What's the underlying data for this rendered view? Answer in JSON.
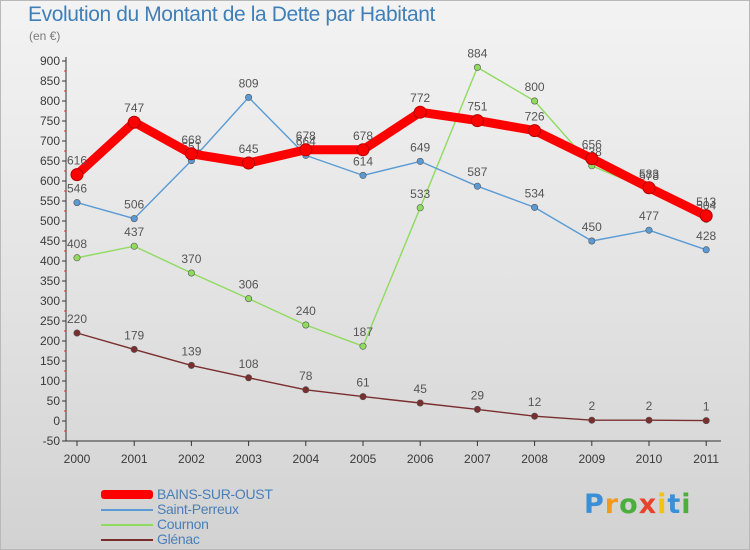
{
  "chart_data": {
    "type": "line",
    "title": "Evolution du Montant de la Dette par Habitant",
    "subtitle": "(en €)",
    "x": [
      "2000",
      "2001",
      "2002",
      "2003",
      "2004",
      "2005",
      "2006",
      "2007",
      "2008",
      "2009",
      "2010",
      "2011"
    ],
    "ylim": [
      -50,
      900
    ],
    "yticks": [
      -50,
      0,
      50,
      100,
      150,
      200,
      250,
      300,
      350,
      400,
      450,
      500,
      550,
      600,
      650,
      700,
      750,
      800,
      850,
      900
    ],
    "grid": false,
    "legend_position": "bottom-left",
    "series": [
      {
        "name": "BAINS-SUR-OUST",
        "color": "#ff0000",
        "emphasis": true,
        "values": [
          616,
          747,
          668,
          645,
          678,
          678,
          772,
          751,
          726,
          656,
          583,
          513
        ]
      },
      {
        "name": "Saint-Perreux",
        "color": "#5a9bd5",
        "values": [
          546,
          506,
          651,
          809,
          664,
          614,
          649,
          587,
          534,
          450,
          477,
          428
        ]
      },
      {
        "name": "Cournon",
        "color": "#8fdb5e",
        "values": [
          408,
          437,
          370,
          306,
          240,
          187,
          533,
          884,
          800,
          638,
          578,
          504
        ]
      },
      {
        "name": "Glénac",
        "color": "#7a2e2e",
        "values": [
          220,
          179,
          139,
          108,
          78,
          61,
          45,
          29,
          12,
          2,
          2,
          1
        ]
      }
    ]
  },
  "branding": {
    "logo_letters": [
      {
        "char": "P",
        "color": "#3b8fd6"
      },
      {
        "char": "r",
        "color": "#f39a1a"
      },
      {
        "char": "o",
        "color": "#4cae3c"
      },
      {
        "char": "x",
        "color": "#e8422c"
      },
      {
        "char": "i",
        "color": "#f2c40f"
      },
      {
        "char": "t",
        "color": "#3b8fd6"
      },
      {
        "char": "i",
        "color": "#4cae3c"
      }
    ]
  }
}
